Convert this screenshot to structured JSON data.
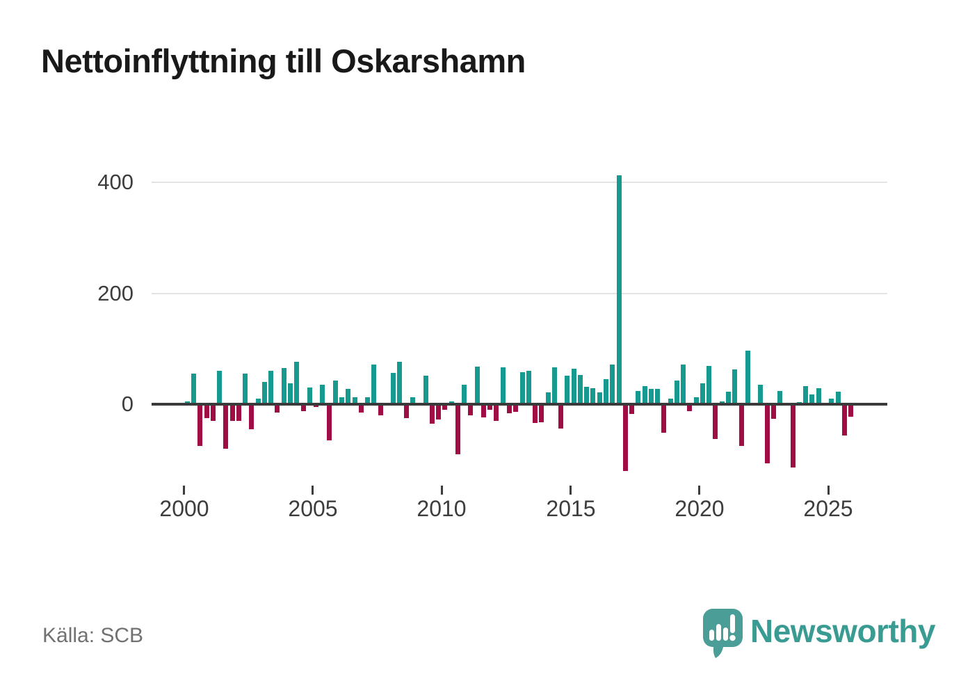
{
  "title": "Nettoinflyttning till Oskarshamn",
  "source": "Källa: SCB",
  "branding": {
    "name": "Newsworthy",
    "icon": "bar-chart-speech-bubble-icon"
  },
  "colors": {
    "positive": "#16998e",
    "negative": "#a00d45",
    "grid": "#e4e4e4",
    "zero_axis": "#3a3a3a",
    "tick_text": "#3d3d3d",
    "title_text": "#191919",
    "source_text": "#717171",
    "brand": "#3a9b93",
    "background": "#ffffff"
  },
  "chart_data": {
    "type": "bar",
    "title": "Nettoinflyttning till Oskarshamn",
    "xlabel": "",
    "ylabel": "",
    "ylim": [
      -130,
      430
    ],
    "yticks": [
      0,
      200,
      400
    ],
    "xticks": [
      "2000",
      "2005",
      "2010",
      "2015",
      "2020",
      "2025"
    ],
    "grid": "horizontal",
    "legend": "none",
    "quarters": [
      "2000Q1",
      "2000Q2",
      "2000Q3",
      "2000Q4",
      "2001Q1",
      "2001Q2",
      "2001Q3",
      "2001Q4",
      "2002Q1",
      "2002Q2",
      "2002Q3",
      "2002Q4",
      "2003Q1",
      "2003Q2",
      "2003Q3",
      "2003Q4",
      "2004Q1",
      "2004Q2",
      "2004Q3",
      "2004Q4",
      "2005Q1",
      "2005Q2",
      "2005Q3",
      "2005Q4",
      "2006Q1",
      "2006Q2",
      "2006Q3",
      "2006Q4",
      "2007Q1",
      "2007Q2",
      "2007Q3",
      "2007Q4",
      "2008Q1",
      "2008Q2",
      "2008Q3",
      "2008Q4",
      "2009Q1",
      "2009Q2",
      "2009Q3",
      "2009Q4",
      "2010Q1",
      "2010Q2",
      "2010Q3",
      "2010Q4",
      "2011Q1",
      "2011Q2",
      "2011Q3",
      "2011Q4",
      "2012Q1",
      "2012Q2",
      "2012Q3",
      "2012Q4",
      "2013Q1",
      "2013Q2",
      "2013Q3",
      "2013Q4",
      "2014Q1",
      "2014Q2",
      "2014Q3",
      "2014Q4",
      "2015Q1",
      "2015Q2",
      "2015Q3",
      "2015Q4",
      "2016Q1",
      "2016Q2",
      "2016Q3",
      "2016Q4",
      "2017Q1",
      "2017Q2",
      "2017Q3",
      "2017Q4",
      "2018Q1",
      "2018Q2",
      "2018Q3",
      "2018Q4",
      "2019Q1",
      "2019Q2",
      "2019Q3",
      "2019Q4",
      "2020Q1",
      "2020Q2",
      "2020Q3",
      "2020Q4",
      "2021Q1",
      "2021Q2",
      "2021Q3",
      "2021Q4",
      "2022Q1",
      "2022Q2",
      "2022Q3",
      "2022Q4",
      "2023Q1",
      "2023Q2",
      "2023Q3",
      "2023Q4",
      "2024Q1",
      "2024Q2",
      "2024Q3",
      "2024Q4",
      "2025Q1",
      "2025Q2",
      "2025Q3",
      "2025Q4"
    ],
    "values": [
      5,
      55,
      -75,
      -25,
      -30,
      60,
      -80,
      -30,
      -30,
      55,
      -45,
      10,
      40,
      60,
      -15,
      65,
      38,
      77,
      -12,
      30,
      -5,
      35,
      -65,
      43,
      12,
      28,
      12,
      -15,
      12,
      72,
      -20,
      0,
      57,
      77,
      -25,
      12,
      0,
      52,
      -35,
      -28,
      -10,
      5,
      -90,
      35,
      -20,
      68,
      -24,
      -10,
      -30,
      67,
      -16,
      -14,
      58,
      60,
      -34,
      -33,
      21,
      66,
      -44,
      51,
      64,
      53,
      31,
      29,
      21,
      45,
      72,
      413,
      -120,
      -18,
      24,
      33,
      27,
      28,
      -51,
      10,
      43,
      72,
      -12,
      12,
      38,
      69,
      -63,
      5,
      22,
      63,
      -75,
      97,
      0,
      35,
      -106,
      -26,
      24,
      3,
      -114,
      4,
      32,
      18,
      29,
      0,
      10,
      22,
      -57,
      -22
    ]
  }
}
